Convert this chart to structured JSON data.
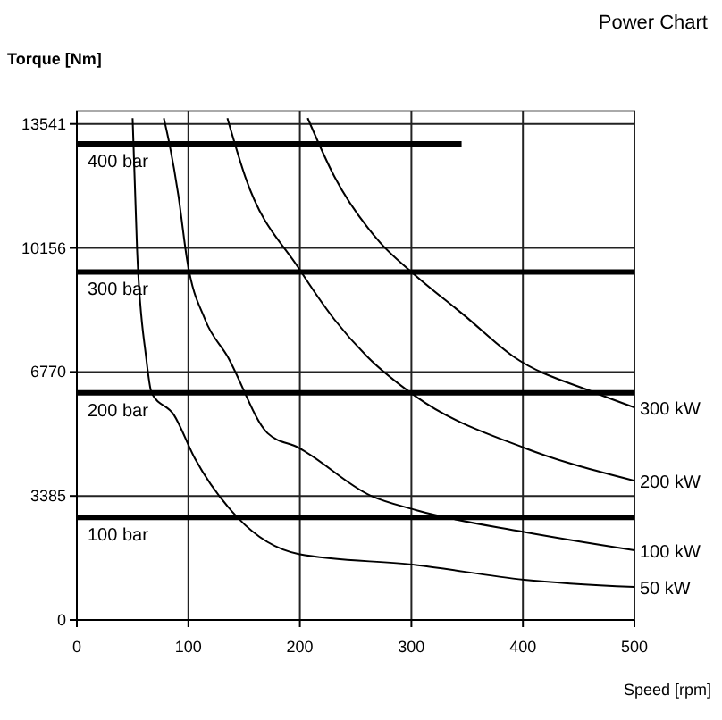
{
  "chart_data": {
    "type": "line",
    "title": "Power Chart",
    "xlabel": "Speed [rpm]",
    "ylabel": "Torque [Nm]",
    "xlim": [
      0,
      500
    ],
    "xticks": [
      0,
      100,
      200,
      300,
      400,
      500
    ],
    "ylim": [
      0,
      13900
    ],
    "yticks": [
      0,
      3385,
      6770,
      10156,
      13541
    ],
    "grid": true,
    "legend": false,
    "marker": "none",
    "line_style": "solid",
    "series": [
      {
        "name": "400 bar",
        "color": "#000000",
        "x": [
          0,
          345
        ],
        "values": [
          13000,
          13000
        ]
      },
      {
        "name": "300 bar",
        "color": "#000000",
        "x": [
          0,
          500
        ],
        "values": [
          9500,
          9500
        ]
      },
      {
        "name": "200 bar",
        "color": "#000000",
        "x": [
          0,
          500
        ],
        "values": [
          6200,
          6200
        ]
      },
      {
        "name": "100 bar",
        "color": "#000000",
        "x": [
          0,
          500
        ],
        "values": [
          2800,
          2800
        ]
      },
      {
        "name": "300 kW",
        "color": "#000000",
        "x": [
          207,
          231,
          272,
          300,
          348,
          391,
          465,
          500
        ],
        "values": [
          13700,
          12100,
          10300,
          9500,
          8300,
          7200,
          6200,
          5800
        ]
      },
      {
        "name": "200 kW",
        "color": "#000000",
        "x": [
          135,
          151,
          199,
          231,
          260,
          304,
          401,
          500
        ],
        "values": [
          13700,
          12100,
          9600,
          8200,
          7200,
          6100,
          4700,
          3800
        ]
      },
      {
        "name": "100 kW",
        "color": "#000000",
        "x": [
          78,
          83,
          91,
          99,
          115,
          135,
          171,
          199,
          263,
          304,
          401,
          500
        ],
        "values": [
          13700,
          13000,
          11600,
          9800,
          8200,
          7200,
          5100,
          4700,
          3400,
          3000,
          2400,
          1900
        ]
      },
      {
        "name": "50 kW",
        "color": "#000000",
        "x": [
          50,
          54,
          62,
          67,
          87,
          106,
          144,
          199,
          304,
          401,
          500
        ],
        "values": [
          13700,
          10100,
          7200,
          6200,
          5600,
          4400,
          2800,
          1800,
          1500,
          1100,
          900
        ]
      }
    ]
  }
}
